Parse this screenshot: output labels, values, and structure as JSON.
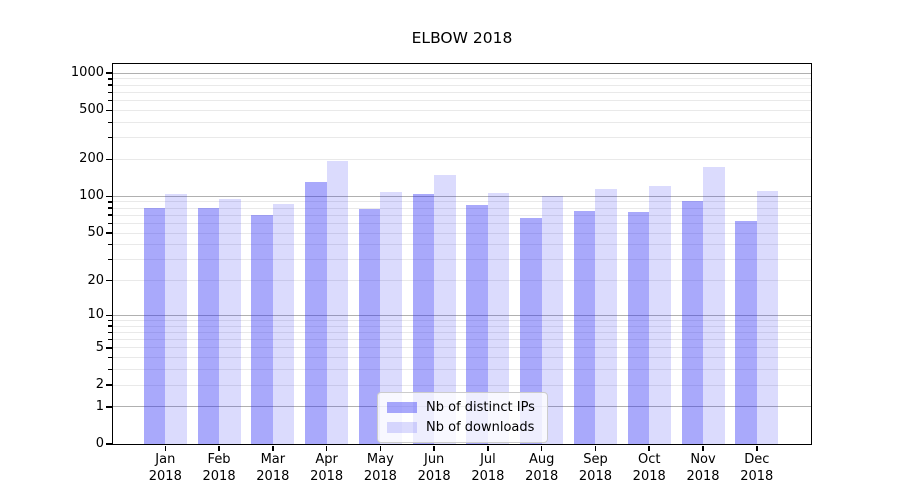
{
  "chart_data": {
    "type": "bar",
    "title": "ELBOW 2018",
    "categories": [
      "Jan",
      "Feb",
      "Mar",
      "Apr",
      "May",
      "Jun",
      "Jul",
      "Aug",
      "Sep",
      "Oct",
      "Nov",
      "Dec"
    ],
    "year": "2018",
    "series": [
      {
        "name": "Nb of distinct IPs",
        "color": "#a8a8f8",
        "color_rgba": "rgba(40,40,245,0.40)",
        "values": [
          81,
          81,
          71,
          130,
          79,
          104,
          85,
          67,
          76,
          75,
          91,
          63
        ]
      },
      {
        "name": "Nb of downloads",
        "color": "#d9d9f9",
        "color_rgba": "rgba(40,40,245,0.17)",
        "values": [
          105,
          95,
          86,
          195,
          108,
          150,
          107,
          101,
          115,
          122,
          173,
          110
        ]
      }
    ],
    "y_scale": "log10(value+1)",
    "yticks": [
      1000,
      500,
      200,
      100,
      50,
      20,
      10,
      5,
      2,
      1,
      0
    ],
    "ylim": [
      0,
      1188
    ],
    "grid": {
      "major_at": [
        1,
        10,
        100,
        1000
      ],
      "major_color": "#b0b0b0",
      "minor_color": "#e9e9e9"
    },
    "legend": {
      "position": "lower center"
    }
  }
}
